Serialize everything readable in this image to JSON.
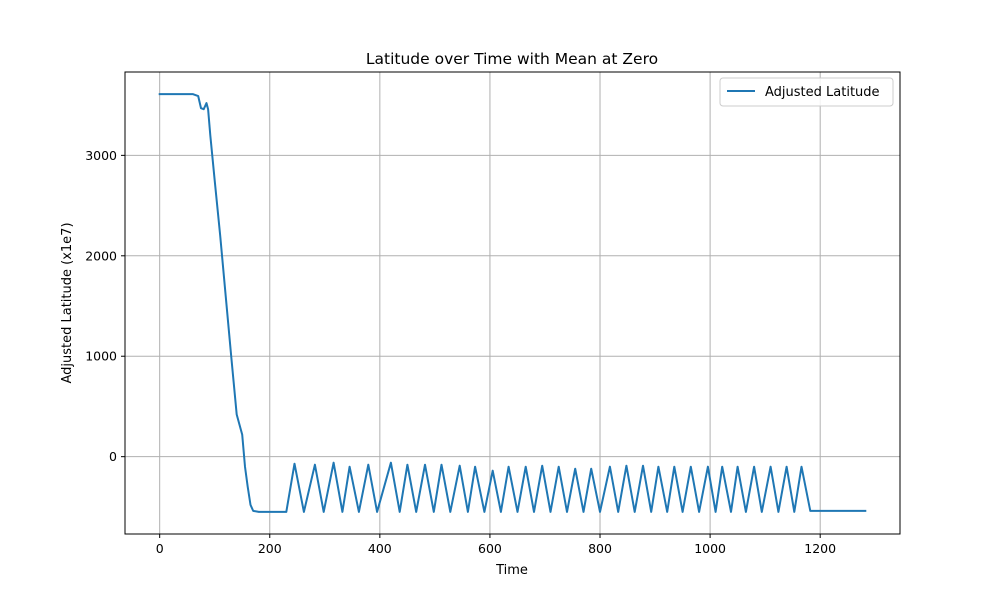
{
  "chart_data": {
    "type": "line",
    "title": "Latitude over Time with Mean at Zero",
    "xlabel": "Time",
    "ylabel": "Adjusted Latitude (x1e7)",
    "xlim": [
      -63,
      1345
    ],
    "ylim": [
      -770,
      3830
    ],
    "xticks": [
      0,
      200,
      400,
      600,
      800,
      1000,
      1200
    ],
    "yticks": [
      0,
      1000,
      2000,
      3000
    ],
    "grid": true,
    "legend_position": "upper right",
    "color": "#1f77b4",
    "series": [
      {
        "name": "Adjusted Latitude",
        "x": [
          0,
          20,
          40,
          60,
          70,
          75,
          80,
          85,
          88,
          92,
          100,
          110,
          120,
          130,
          140,
          150,
          155,
          160,
          165,
          170,
          180,
          230,
          245,
          262,
          282,
          298,
          316,
          332,
          345,
          362,
          379,
          395,
          420,
          436,
          450,
          466,
          482,
          498,
          512,
          528,
          545,
          560,
          573,
          590,
          605,
          620,
          634,
          650,
          665,
          680,
          695,
          710,
          725,
          740,
          755,
          770,
          784,
          800,
          818,
          833,
          848,
          863,
          878,
          893,
          906,
          922,
          935,
          950,
          965,
          980,
          996,
          1010,
          1022,
          1038,
          1050,
          1065,
          1080,
          1094,
          1110,
          1124,
          1139,
          1153,
          1166,
          1182,
          1200,
          1240,
          1282
        ],
        "y": [
          3610,
          3610,
          3610,
          3610,
          3590,
          3470,
          3460,
          3520,
          3460,
          3200,
          2750,
          2200,
          1600,
          1000,
          420,
          220,
          -100,
          -300,
          -480,
          -540,
          -550,
          -550,
          -70,
          -550,
          -80,
          -550,
          -60,
          -550,
          -100,
          -550,
          -80,
          -550,
          -60,
          -550,
          -80,
          -550,
          -80,
          -550,
          -80,
          -550,
          -90,
          -550,
          -100,
          -550,
          -140,
          -550,
          -100,
          -550,
          -100,
          -550,
          -90,
          -550,
          -100,
          -550,
          -120,
          -550,
          -120,
          -550,
          -100,
          -550,
          -90,
          -550,
          -90,
          -550,
          -100,
          -550,
          -100,
          -550,
          -100,
          -550,
          -100,
          -550,
          -100,
          -550,
          -100,
          -550,
          -100,
          -550,
          -100,
          -550,
          -100,
          -550,
          -100,
          -540,
          -540,
          -540,
          -540
        ]
      }
    ]
  }
}
